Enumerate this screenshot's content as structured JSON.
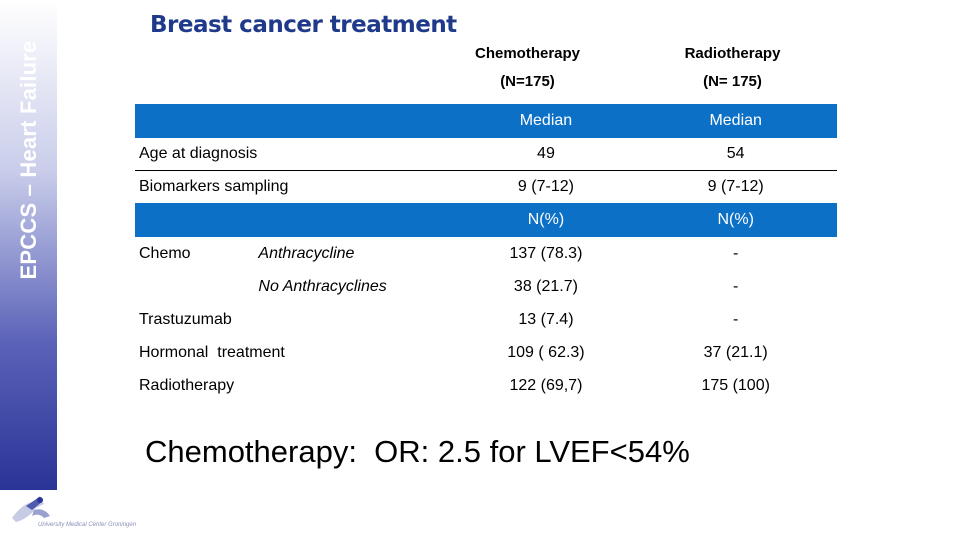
{
  "sidebar": {
    "label": "EPCCS – Heart Failure"
  },
  "logo": {
    "caption": "University Medical Center Groningen"
  },
  "title": "Breast cancer treatment",
  "columns": {
    "chemo": {
      "name": "Chemotherapy",
      "n": "(N=175)"
    },
    "radio": {
      "name": "Radiotherapy",
      "n": "(N= 175)"
    }
  },
  "table": {
    "band1": {
      "chemo": "Median",
      "radio": "Median"
    },
    "age": {
      "label": "Age at diagnosis",
      "chemo": "49",
      "radio": "54"
    },
    "bio": {
      "label": "Biomarkers sampling",
      "chemo": "9  (7-12)",
      "radio": "9 (7-12)"
    },
    "band2": {
      "chemo": "N(%)",
      "radio": "N(%)"
    },
    "anthra": {
      "label": "Chemo",
      "sub": "Anthracycline",
      "chemo": "137 (78.3)",
      "radio": "-"
    },
    "noanthra": {
      "sub": "No Anthracyclines",
      "chemo": "38 (21.7)",
      "radio": "-"
    },
    "trastu": {
      "label": "Trastuzumab",
      "chemo": "13 (7.4)",
      "radio": "-"
    },
    "hormonal": {
      "label": "Hormonal  treatment",
      "chemo": "109 ( 62.3)",
      "radio": "37 (21.1)"
    },
    "radiotherapy": {
      "label": "Radiotherapy",
      "chemo": "122 (69,7)",
      "radio": "175 (100)"
    }
  },
  "conclusion": "Chemotherapy:  OR: 2.5 for LVEF<54%",
  "colors": {
    "band": "#0b70c6",
    "title": "#1f3a8a",
    "sidebar_dark": "#2a3496"
  }
}
